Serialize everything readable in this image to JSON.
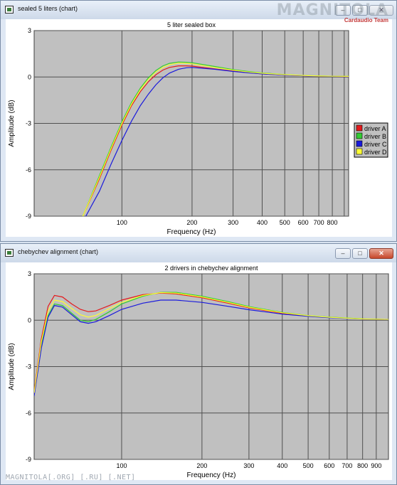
{
  "windows": [
    {
      "title": "sealed 5 liters (chart)",
      "buttons": {
        "minimize": "–",
        "maximize": "□",
        "close": "✕"
      },
      "close_active": false,
      "accent": "#c7472b"
    },
    {
      "title": "chebychev alignment (chart)",
      "buttons": {
        "minimize": "–",
        "maximize": "□",
        "close": "✕"
      },
      "close_active": true,
      "accent": "#c7472b"
    }
  ],
  "watermark": {
    "logo_text": "MAGNITOLA",
    "logo_subtext": "Cardaudio Team",
    "bottom_text": "MAGNITOLA[.ORG] [.RU] [.NET]"
  },
  "chart_data": [
    {
      "type": "line",
      "title": "5 liter sealed box",
      "xlabel": "Frequency (Hz)",
      "ylabel": "Amplitude (dB)",
      "x_scale": "log",
      "xlim": [
        42,
        940
      ],
      "ylim": [
        -9,
        3
      ],
      "x_ticks": [
        {
          "value": 100,
          "label": "100"
        },
        {
          "value": 200,
          "label": "200"
        },
        {
          "value": 300,
          "label": "300"
        },
        {
          "value": 400,
          "label": "400"
        },
        {
          "value": 500,
          "label": "500"
        },
        {
          "value": 600,
          "label": "600"
        },
        {
          "value": 700,
          "label": "700"
        },
        {
          "value": 800,
          "label": "800"
        },
        {
          "value": 900,
          "label": ""
        }
      ],
      "y_ticks": [
        3,
        0,
        -3,
        -6,
        -9
      ],
      "grid": true,
      "plot_background": "#c0c0c0",
      "legend_position": "right",
      "series": [
        {
          "name": "driver A",
          "color": "#e41a1c",
          "x": [
            68,
            80,
            90,
            100,
            110,
            120,
            130,
            140,
            150,
            160,
            175,
            190,
            200,
            250,
            300,
            350,
            400,
            500,
            600,
            700,
            800,
            940
          ],
          "y": [
            -9.0,
            -6.6,
            -4.7,
            -3.1,
            -1.85,
            -0.95,
            -0.3,
            0.15,
            0.45,
            0.62,
            0.72,
            0.72,
            0.7,
            0.52,
            0.38,
            0.28,
            0.2,
            0.12,
            0.08,
            0.05,
            0.04,
            0.03
          ]
        },
        {
          "name": "driver B",
          "color": "#33cc33",
          "x": [
            68,
            80,
            90,
            100,
            110,
            120,
            130,
            140,
            150,
            160,
            175,
            190,
            200,
            250,
            300,
            350,
            400,
            500,
            600,
            700,
            800,
            940
          ],
          "y": [
            -9.0,
            -6.4,
            -4.5,
            -2.9,
            -1.65,
            -0.72,
            -0.05,
            0.42,
            0.72,
            0.88,
            0.97,
            0.95,
            0.92,
            0.68,
            0.48,
            0.35,
            0.26,
            0.16,
            0.1,
            0.07,
            0.05,
            0.04
          ]
        },
        {
          "name": "driver C",
          "color": "#1a1adc",
          "x": [
            70,
            80,
            90,
            100,
            110,
            120,
            130,
            140,
            150,
            160,
            175,
            190,
            200,
            250,
            300,
            350,
            400,
            500,
            600,
            700,
            800,
            940
          ],
          "y": [
            -9.0,
            -7.4,
            -5.6,
            -4.1,
            -2.85,
            -1.85,
            -1.1,
            -0.5,
            -0.05,
            0.25,
            0.5,
            0.6,
            0.62,
            0.5,
            0.36,
            0.27,
            0.2,
            0.12,
            0.08,
            0.05,
            0.04,
            0.03
          ]
        },
        {
          "name": "driver D",
          "color": "#ffff33",
          "x": [
            68,
            80,
            90,
            100,
            110,
            120,
            130,
            140,
            150,
            160,
            175,
            190,
            200,
            250,
            300,
            350,
            400,
            500,
            600,
            700,
            800,
            940
          ],
          "y": [
            -9.0,
            -6.5,
            -4.6,
            -3.0,
            -1.75,
            -0.82,
            -0.15,
            0.32,
            0.62,
            0.8,
            0.9,
            0.88,
            0.85,
            0.62,
            0.44,
            0.32,
            0.24,
            0.15,
            0.1,
            0.06,
            0.05,
            0.04
          ]
        }
      ]
    },
    {
      "type": "line",
      "title": "2 drivers in chebychev alignment",
      "xlabel": "Frequency (Hz)",
      "ylabel": "Amplitude (dB)",
      "x_scale": "log",
      "xlim": [
        47,
        1000
      ],
      "ylim": [
        -9,
        3
      ],
      "x_ticks": [
        {
          "value": 100,
          "label": "100"
        },
        {
          "value": 200,
          "label": "200"
        },
        {
          "value": 300,
          "label": "300"
        },
        {
          "value": 400,
          "label": "400"
        },
        {
          "value": 500,
          "label": "500"
        },
        {
          "value": 600,
          "label": "600"
        },
        {
          "value": 700,
          "label": "700"
        },
        {
          "value": 800,
          "label": "800"
        },
        {
          "value": 900,
          "label": "900"
        }
      ],
      "y_ticks": [
        3,
        0,
        -3,
        -6,
        -9
      ],
      "grid": true,
      "plot_background": "#c0c0c0",
      "legend_position": "none",
      "series": [
        {
          "name": "",
          "color": "#e41a1c",
          "x": [
            47,
            50,
            53,
            56,
            60,
            65,
            70,
            75,
            80,
            90,
            100,
            120,
            140,
            160,
            200,
            250,
            300,
            400,
            500,
            600,
            800,
            1000
          ],
          "y": [
            -4.6,
            -1.2,
            0.9,
            1.6,
            1.5,
            1.05,
            0.7,
            0.55,
            0.6,
            0.95,
            1.3,
            1.65,
            1.75,
            1.7,
            1.45,
            1.1,
            0.8,
            0.45,
            0.28,
            0.18,
            0.08,
            0.04
          ]
        },
        {
          "name": "",
          "color": "#33cc33",
          "x": [
            47,
            50,
            53,
            56,
            60,
            65,
            70,
            75,
            80,
            90,
            100,
            120,
            140,
            160,
            200,
            250,
            300,
            400,
            500,
            600,
            800,
            1000
          ],
          "y": [
            -4.8,
            -1.6,
            0.3,
            1.05,
            0.95,
            0.45,
            0.0,
            -0.1,
            0.05,
            0.55,
            1.05,
            1.55,
            1.8,
            1.8,
            1.55,
            1.2,
            0.88,
            0.5,
            0.3,
            0.2,
            0.09,
            0.05
          ]
        },
        {
          "name": "",
          "color": "#1a1adc",
          "x": [
            47,
            50,
            53,
            56,
            60,
            65,
            70,
            75,
            80,
            90,
            100,
            120,
            140,
            160,
            200,
            250,
            300,
            400,
            500,
            600,
            800,
            1000
          ],
          "y": [
            -4.9,
            -1.8,
            0.2,
            0.95,
            0.85,
            0.35,
            -0.1,
            -0.2,
            -0.1,
            0.3,
            0.7,
            1.1,
            1.3,
            1.3,
            1.15,
            0.9,
            0.68,
            0.4,
            0.25,
            0.16,
            0.07,
            0.04
          ]
        },
        {
          "name": "",
          "color": "#ffff33",
          "x": [
            47,
            50,
            53,
            56,
            60,
            65,
            70,
            75,
            80,
            90,
            100,
            120,
            140,
            160,
            200,
            250,
            300,
            400,
            500,
            600,
            800,
            1000
          ],
          "y": [
            -4.7,
            -1.4,
            0.6,
            1.3,
            1.2,
            0.75,
            0.35,
            0.2,
            0.3,
            0.75,
            1.15,
            1.6,
            1.78,
            1.75,
            1.5,
            1.15,
            0.84,
            0.48,
            0.29,
            0.19,
            0.08,
            0.05
          ]
        }
      ]
    }
  ]
}
